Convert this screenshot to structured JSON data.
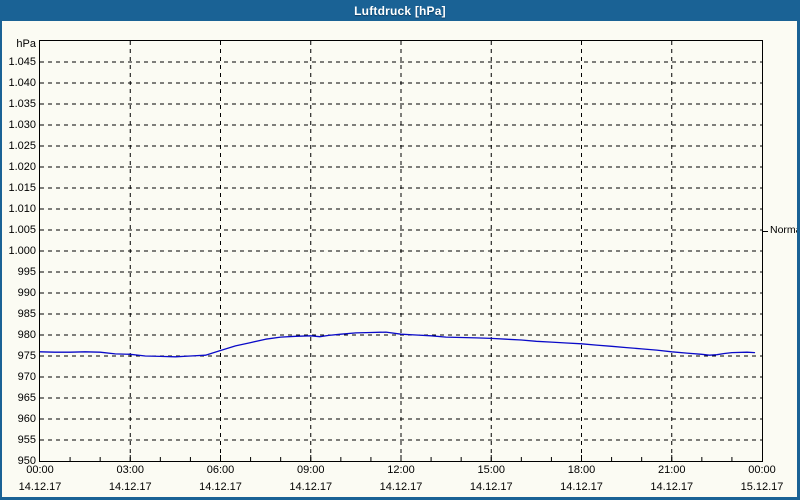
{
  "window": {
    "title": "Luftdruck [hPa]"
  },
  "colors": {
    "titlebar_bg": "#1a6295",
    "frame": "#1a6295",
    "content_bg": "#fbfbf3",
    "plot_border": "#000000",
    "grid": "#000000",
    "line": "#0a0ac8",
    "label_text": "#000000",
    "title_text": "#ffffff"
  },
  "chart_data": {
    "type": "line",
    "title": "Luftdruck [hPa]",
    "ylabel": "hPa",
    "xlabel": "",
    "ylim": [
      950,
      1050
    ],
    "xlim_hours": [
      0,
      24
    ],
    "grid": "dashed",
    "legend_position": "none",
    "yticks": [
      1045,
      1040,
      1035,
      1030,
      1025,
      1020,
      1015,
      1010,
      1005,
      1000,
      995,
      990,
      985,
      980,
      975,
      970,
      965,
      960,
      955,
      950
    ],
    "ytick_labels": [
      "1.045",
      "1.040",
      "1.035",
      "1.030",
      "1.025",
      "1.020",
      "1.015",
      "1.010",
      "1.005",
      "1.000",
      "995",
      "990",
      "985",
      "980",
      "975",
      "970",
      "965",
      "960",
      "955",
      "950"
    ],
    "xticks": [
      {
        "hour": 0,
        "time": "00:00",
        "date": "14.12.17"
      },
      {
        "hour": 3,
        "time": "03:00",
        "date": "14.12.17"
      },
      {
        "hour": 6,
        "time": "06:00",
        "date": "14.12.17"
      },
      {
        "hour": 9,
        "time": "09:00",
        "date": "14.12.17"
      },
      {
        "hour": 12,
        "time": "12:00",
        "date": "14.12.17"
      },
      {
        "hour": 15,
        "time": "15:00",
        "date": "14.12.17"
      },
      {
        "hour": 18,
        "time": "18:00",
        "date": "14.12.17"
      },
      {
        "hour": 21,
        "time": "21:00",
        "date": "14.12.17"
      },
      {
        "hour": 24,
        "time": "00:00",
        "date": "15.12.17"
      }
    ],
    "minor_xtick_interval_hours": 1,
    "annotations": [
      {
        "label": "Normal",
        "value": 1004.8,
        "side": "right"
      }
    ],
    "series": [
      {
        "name": "Luftdruck",
        "color": "#0a0ac8",
        "points": [
          [
            0,
            976.0
          ],
          [
            0.5,
            975.9
          ],
          [
            1,
            975.9
          ],
          [
            1.5,
            976.0
          ],
          [
            2,
            975.9
          ],
          [
            2.5,
            975.5
          ],
          [
            3,
            975.4
          ],
          [
            3.5,
            975.0
          ],
          [
            4,
            974.9
          ],
          [
            4.5,
            974.8
          ],
          [
            5,
            975.0
          ],
          [
            5.5,
            975.2
          ],
          [
            6,
            976.3
          ],
          [
            6.5,
            977.4
          ],
          [
            7,
            978.2
          ],
          [
            7.5,
            979.0
          ],
          [
            8,
            979.5
          ],
          [
            8.5,
            979.7
          ],
          [
            9,
            979.8
          ],
          [
            9.3,
            979.6
          ],
          [
            9.6,
            979.9
          ],
          [
            10,
            980.2
          ],
          [
            10.5,
            980.5
          ],
          [
            11,
            980.6
          ],
          [
            11.5,
            980.7
          ],
          [
            12,
            980.2
          ],
          [
            12.5,
            980.0
          ],
          [
            13,
            979.8
          ],
          [
            13.5,
            979.5
          ],
          [
            14,
            979.4
          ],
          [
            14.5,
            979.3
          ],
          [
            15,
            979.2
          ],
          [
            15.5,
            979.0
          ],
          [
            16,
            978.8
          ],
          [
            16.5,
            978.5
          ],
          [
            17,
            978.3
          ],
          [
            17.5,
            978.1
          ],
          [
            18,
            977.9
          ],
          [
            18.5,
            977.6
          ],
          [
            19,
            977.3
          ],
          [
            19.5,
            977.0
          ],
          [
            20,
            976.7
          ],
          [
            20.5,
            976.4
          ],
          [
            21,
            976.0
          ],
          [
            21.5,
            975.7
          ],
          [
            22,
            975.4
          ],
          [
            22.25,
            975.2
          ],
          [
            22.5,
            975.3
          ],
          [
            22.75,
            975.6
          ],
          [
            23,
            975.8
          ],
          [
            23.5,
            975.9
          ],
          [
            23.75,
            975.8
          ]
        ]
      }
    ]
  }
}
